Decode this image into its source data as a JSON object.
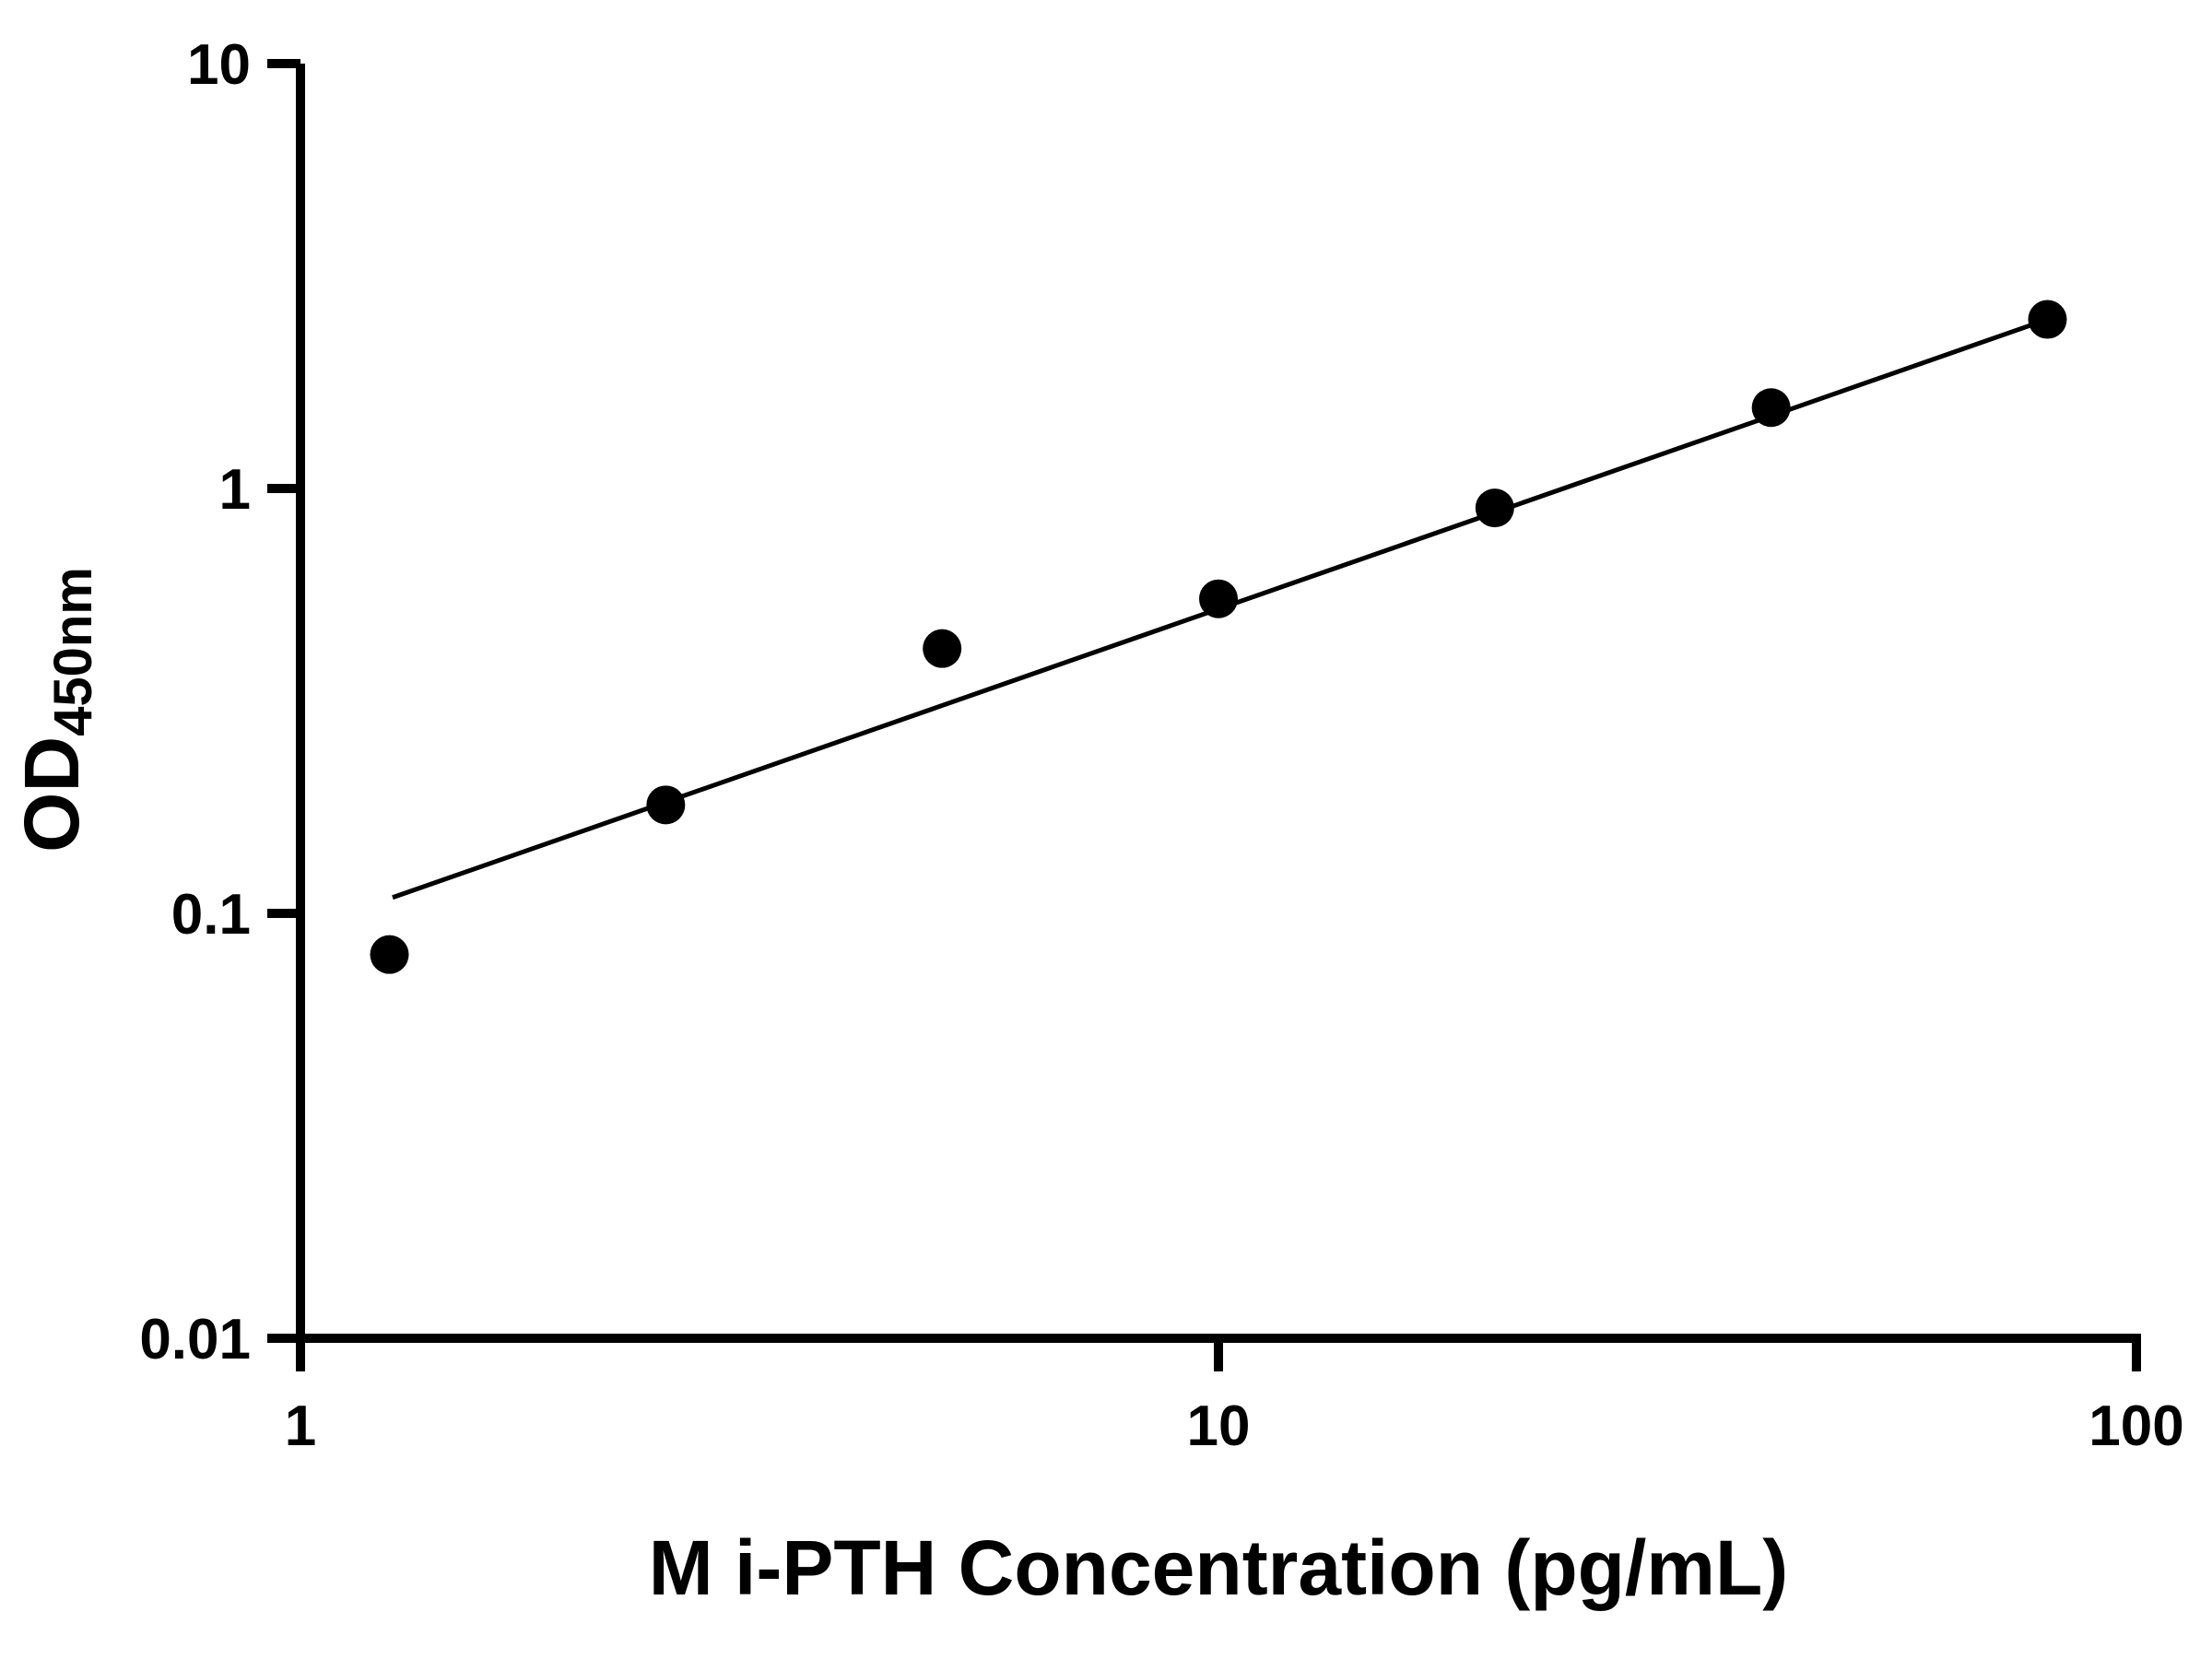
{
  "chart_data": {
    "type": "scatter",
    "title": "",
    "xlabel": "M i-PTH Concentration (pg/mL)",
    "ylabel": "OD",
    "ylabel_subscript": "450nm",
    "xscale": "log",
    "yscale": "log",
    "xlim": [
      1,
      100
    ],
    "ylim": [
      0.01,
      10
    ],
    "x_ticks": [
      1,
      10,
      100
    ],
    "x_tick_labels": [
      "1",
      "10",
      "100"
    ],
    "y_ticks": [
      0.01,
      0.1,
      1,
      10
    ],
    "y_tick_labels": [
      "0.01",
      "0.1",
      "1",
      "10"
    ],
    "grid": false,
    "legend": false,
    "marker_color": "#000000",
    "line_color": "#000000",
    "axis_color": "#000000",
    "background_color": "#ffffff",
    "x": [
      1.25,
      2.5,
      5,
      10,
      20,
      40,
      80
    ],
    "y": [
      0.08,
      0.18,
      0.42,
      0.55,
      0.9,
      1.55,
      2.5
    ],
    "trendline": {
      "type": "power-fit",
      "x_start": 1.26,
      "y_start": 0.109,
      "x_end": 80,
      "y_end": 2.5
    }
  }
}
